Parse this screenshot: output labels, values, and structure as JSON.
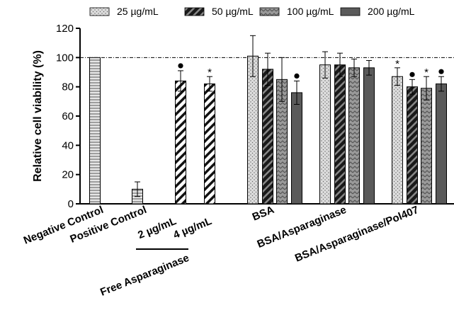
{
  "chart_data": {
    "type": "bar",
    "ylabel": "Relative cell viability (%)",
    "ylim": [
      0,
      120
    ],
    "yticks": [
      0,
      20,
      40,
      60,
      80,
      100,
      120
    ],
    "reference_line": 100,
    "legend": {
      "placement": "top-right",
      "entries": [
        {
          "label": "25 µg/mL",
          "pattern": "dots",
          "fill": "#d9d9d9"
        },
        {
          "label": "50 µg/mL",
          "pattern": "dark-diagonal",
          "fill": "#333333"
        },
        {
          "label": "100 µg/mL",
          "pattern": "zigzag",
          "fill": "#8c8c8c"
        },
        {
          "label": "200 µg/mL",
          "pattern": "solid",
          "fill": "#5a5a5a"
        }
      ]
    },
    "groups": [
      {
        "label": "Negative Control",
        "bars": [
          {
            "value": 100,
            "error": 0,
            "pattern": "horizontal-lines",
            "marker": ""
          }
        ]
      },
      {
        "label": "Positive Control",
        "bars": [
          {
            "value": 10,
            "error": 5,
            "pattern": "horizontal-lines",
            "marker": ""
          }
        ]
      },
      {
        "label": "Free Asparaginase",
        "bars": [
          {
            "label": "2 µg/mL",
            "value": 84,
            "error": 7,
            "pattern": "white-diagonal",
            "marker": "dot"
          },
          {
            "label": "4 µg/mL",
            "value": 82,
            "error": 5,
            "pattern": "white-diagonal",
            "marker": "*"
          }
        ]
      },
      {
        "label": "BSA",
        "bars": [
          {
            "value": 101,
            "error": 14,
            "pattern": "dots",
            "marker": ""
          },
          {
            "value": 92,
            "error": 11,
            "pattern": "dark-diagonal",
            "marker": ""
          },
          {
            "value": 85,
            "error": 15,
            "pattern": "zigzag",
            "marker": ""
          },
          {
            "value": 76,
            "error": 8,
            "pattern": "solid",
            "marker": "dot"
          }
        ]
      },
      {
        "label": "BSA/Asparaginase",
        "bars": [
          {
            "value": 95,
            "error": 9,
            "pattern": "dots",
            "marker": ""
          },
          {
            "value": 95,
            "error": 8,
            "pattern": "dark-diagonal",
            "marker": ""
          },
          {
            "value": 93,
            "error": 6,
            "pattern": "zigzag",
            "marker": ""
          },
          {
            "value": 93,
            "error": 5,
            "pattern": "solid",
            "marker": ""
          }
        ]
      },
      {
        "label": "BSA/Asparaginase/Pol407",
        "bars": [
          {
            "value": 87,
            "error": 6,
            "pattern": "dots",
            "marker": "*"
          },
          {
            "value": 80,
            "error": 5,
            "pattern": "dark-diagonal",
            "marker": "dot"
          },
          {
            "value": 79,
            "error": 8,
            "pattern": "zigzag",
            "marker": "*"
          },
          {
            "value": 82,
            "error": 5,
            "pattern": "solid",
            "marker": "dot"
          }
        ]
      }
    ]
  }
}
